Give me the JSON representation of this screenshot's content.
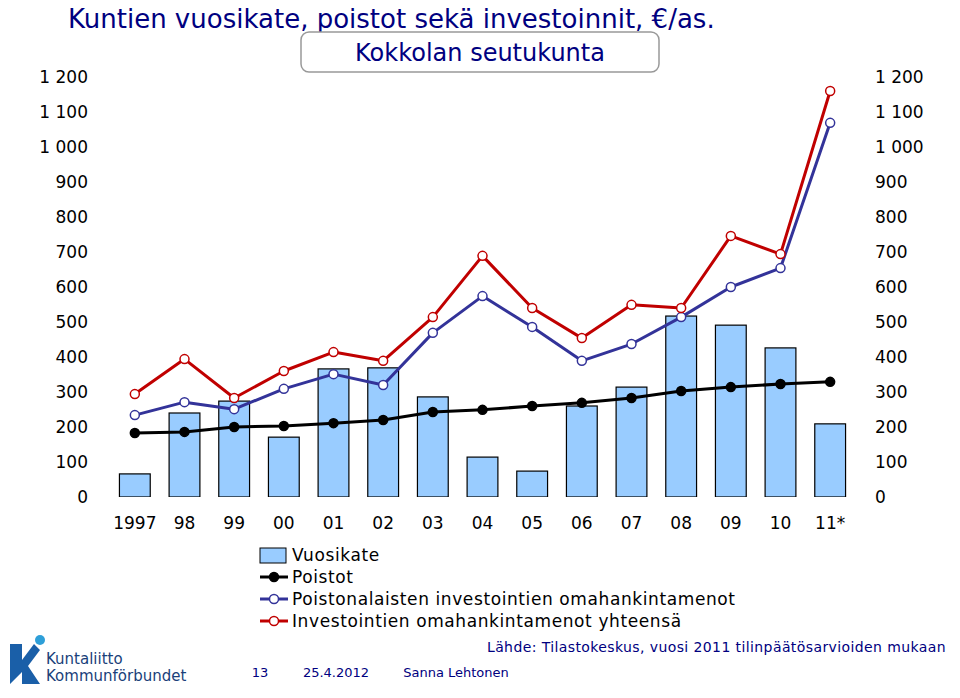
{
  "chart_data": {
    "type": "bar",
    "title": "Kuntien vuosikate, poistot sekä investoinnit, €/as.",
    "subtitle": "Kokkolan seutukunta",
    "categories": [
      "1997",
      "98",
      "99",
      "00",
      "01",
      "02",
      "03",
      "04",
      "05",
      "06",
      "07",
      "08",
      "09",
      "10",
      "11*"
    ],
    "series": [
      {
        "name": "Vuosikate",
        "type": "bar",
        "color": "#99ccff",
        "values": [
          66,
          240,
          274,
          171,
          366,
          369,
          286,
          114,
          74,
          260,
          314,
          517,
          491,
          426,
          209
        ]
      },
      {
        "name": "Poistot",
        "type": "line",
        "color": "#000000",
        "marker": "circle",
        "values": [
          183,
          186,
          200,
          203,
          211,
          220,
          243,
          249,
          260,
          269,
          283,
          303,
          314,
          323,
          329
        ]
      },
      {
        "name": "Poistonalaisten investointien omahankintamenot",
        "type": "line",
        "color": "#333399",
        "marker": "circle",
        "values": [
          234,
          271,
          251,
          309,
          351,
          320,
          469,
          574,
          486,
          389,
          437,
          514,
          600,
          654,
          1069
        ]
      },
      {
        "name": "Investointien omahankintamenot yhteensä",
        "type": "line",
        "color": "#c00000",
        "marker": "circle",
        "values": [
          294,
          394,
          283,
          360,
          414,
          389,
          514,
          689,
          540,
          454,
          549,
          540,
          746,
          694,
          1160
        ]
      }
    ],
    "ylim": [
      0,
      1200
    ],
    "yticks": [
      0,
      100,
      200,
      300,
      400,
      500,
      600,
      700,
      800,
      900,
      {
        "value": 1000,
        "label": "1 000"
      },
      {
        "value": 1100,
        "label": "1 100"
      },
      {
        "value": 1200,
        "label": "1 200"
      }
    ],
    "grid": false,
    "legend": "bottom"
  },
  "footer": {
    "source": "Lähde: Tilastokeskus, vuosi 2011 tilinpäätösarvioiden mukaan",
    "page": "13",
    "date": "25.4.2012",
    "author": "Sanna Lehtonen",
    "logo": [
      "Kuntaliitto",
      "Kommunförbundet"
    ]
  }
}
